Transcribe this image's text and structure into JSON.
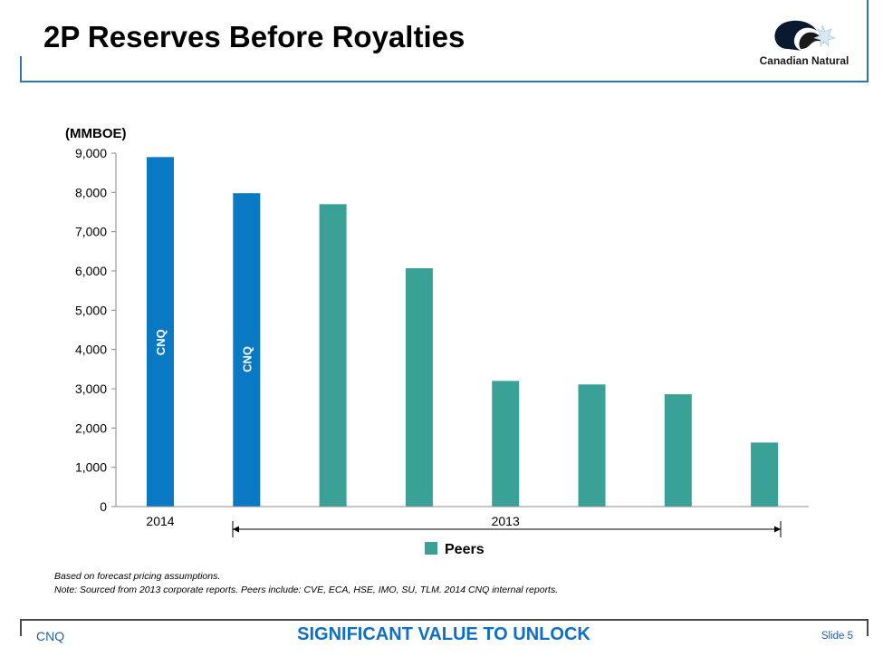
{
  "slide": {
    "title": "2P Reserves Before Royalties",
    "logo_text": "Canadian Natural"
  },
  "chart_data": {
    "type": "bar",
    "ylabel": "(MMBOE)",
    "ylim": [
      0,
      9000
    ],
    "yticks": [
      0,
      1000,
      2000,
      3000,
      4000,
      5000,
      6000,
      7000,
      8000,
      9000
    ],
    "ytick_labels": [
      "0",
      "1,000",
      "2,000",
      "3,000",
      "4,000",
      "5,000",
      "6,000",
      "7,000",
      "8,000",
      "9,000"
    ],
    "values": [
      8900,
      7980,
      7700,
      6070,
      3200,
      3110,
      2860,
      1630
    ],
    "bar_labels": [
      "CNQ",
      "CNQ",
      "",
      "",
      "",
      "",
      "",
      ""
    ],
    "bar_groups": [
      "cnq",
      "cnq",
      "peer",
      "peer",
      "peer",
      "peer",
      "peer",
      "peer"
    ],
    "x_group_labels": [
      "2014",
      "2013"
    ],
    "legend": [
      "Peers"
    ],
    "legend_placement": "bottom",
    "grid": false,
    "colors": {
      "cnq": "#0a79c4",
      "peer": "#3aa197"
    }
  },
  "notes": [
    "Based on forecast pricing assumptions.",
    "Note: Sourced from 2013 corporate reports. Peers include: CVE, ECA, HSE, IMO, SU, TLM. 2014 CNQ internal reports."
  ],
  "footer": {
    "left": "CNQ",
    "center": "SIGNIFICANT VALUE TO UNLOCK",
    "right": "Slide 5"
  },
  "colors": {
    "accent": "#2e75b6",
    "footer_highlight": "#0f6fc6"
  }
}
